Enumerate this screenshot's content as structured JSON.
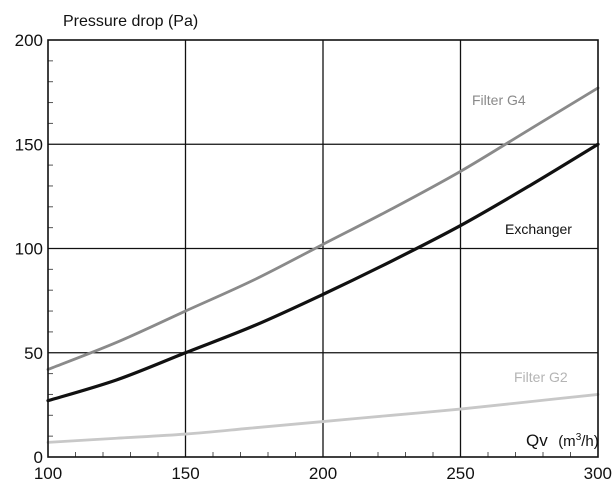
{
  "chart_data": {
    "type": "line",
    "title": "",
    "ylabel": "Pressure drop (Pa)",
    "xlabel_main": "Qv",
    "xlabel_unit_pre": "(m",
    "xlabel_unit_sup": "3",
    "xlabel_unit_post": "/h)",
    "xlim": [
      100,
      300
    ],
    "ylim": [
      0,
      200
    ],
    "x_ticks": [
      100,
      150,
      200,
      250,
      300
    ],
    "y_ticks": [
      0,
      50,
      100,
      150,
      200
    ],
    "grid": true,
    "series": [
      {
        "name": "Filter G4",
        "color": "#8a8a8a",
        "x": [
          100,
          125,
          150,
          175,
          200,
          225,
          250,
          275,
          300
        ],
        "y": [
          42,
          55,
          70,
          85,
          102,
          119,
          137,
          157,
          177
        ]
      },
      {
        "name": "Exchanger",
        "color": "#111111",
        "x": [
          100,
          125,
          150,
          175,
          200,
          225,
          250,
          275,
          300
        ],
        "y": [
          27,
          37,
          50,
          63,
          78,
          94,
          111,
          130,
          150
        ]
      },
      {
        "name": "Filter G2",
        "color": "#c8c8c8",
        "x": [
          100,
          125,
          150,
          175,
          200,
          225,
          250,
          275,
          300
        ],
        "y": [
          7,
          9,
          11,
          14,
          17,
          20,
          23,
          26.5,
          30
        ]
      }
    ]
  }
}
